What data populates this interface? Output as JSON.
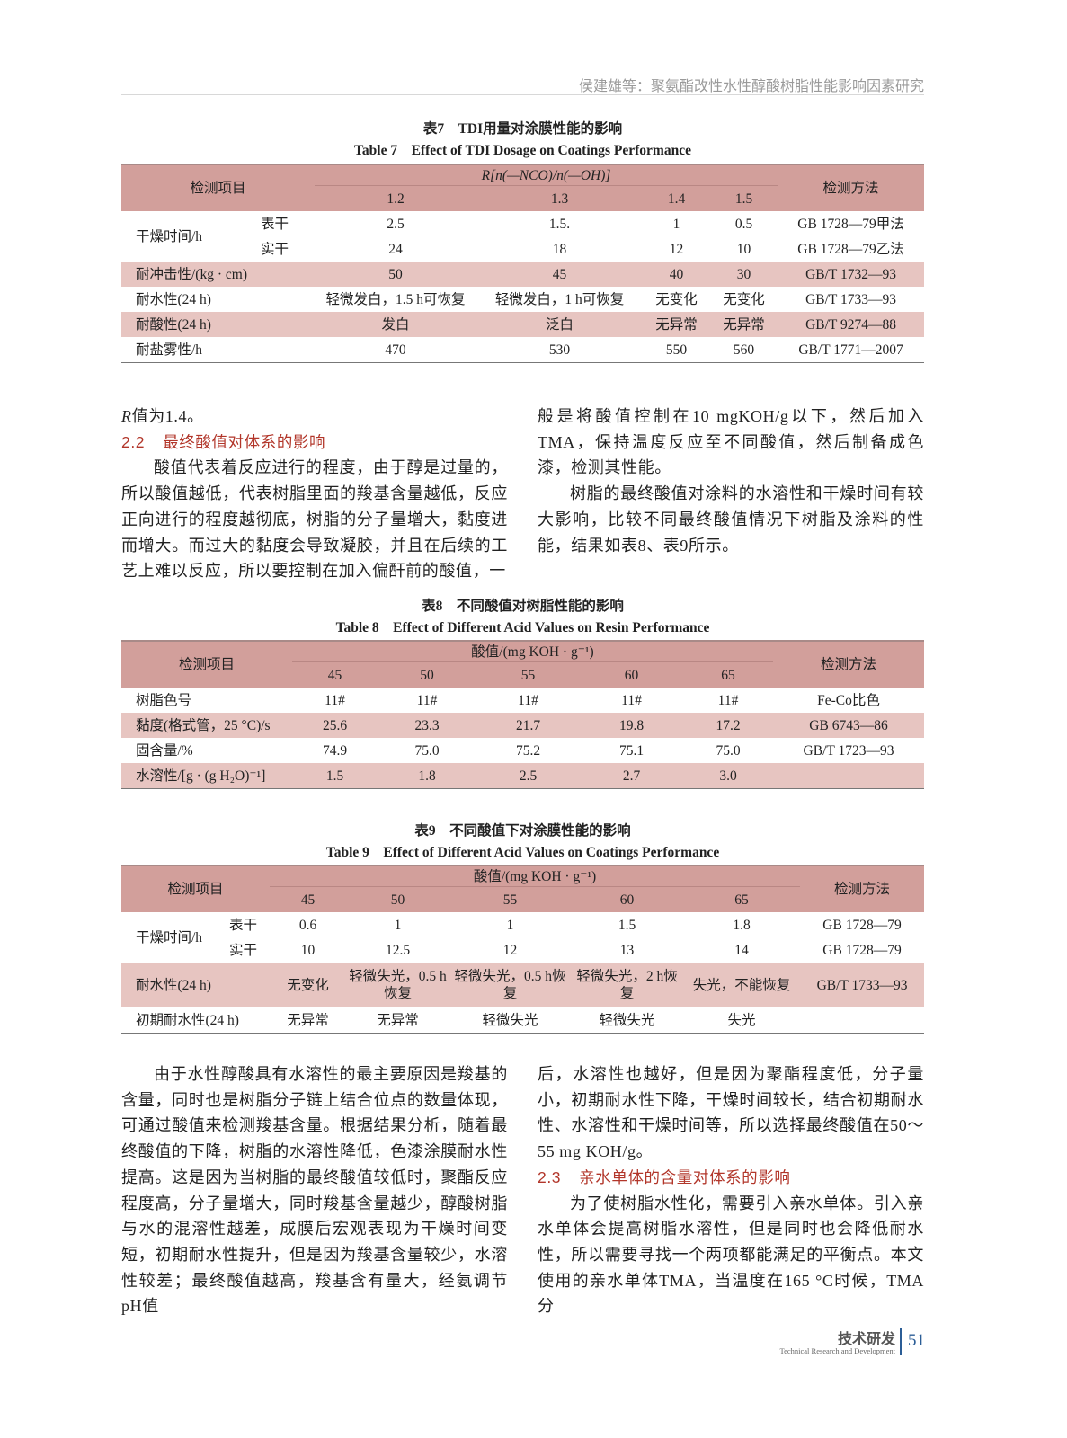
{
  "header": {
    "running_title": "侯建雄等：聚氨酯改性水性醇酸树脂性能影响因素研究"
  },
  "colors": {
    "table_header": "#d29f9b",
    "table_band": "#e7c5c1",
    "section_heading": "#b2362a",
    "footer_accent": "#2b5d96"
  },
  "table7": {
    "title_cn": "表7　TDI用量对涂膜性能的影响",
    "title_en": "Table 7　Effect of TDI Dosage on Coatings Performance",
    "col_item": "检测项目",
    "col_group": "R[n(—NCO)/n(—OH)]",
    "cols": [
      "1.2",
      "1.3",
      "1.4",
      "1.5"
    ],
    "col_method": "检测方法",
    "group_label": "干燥时间/h",
    "rows": [
      {
        "label": "表干",
        "values": [
          "2.5",
          "1.5.",
          "1",
          "0.5"
        ],
        "method": "GB 1728—79甲法"
      },
      {
        "label": "实干",
        "values": [
          "24",
          "18",
          "12",
          "10"
        ],
        "method": "GB 1728—79乙法"
      },
      {
        "label": "耐冲击性/(kg · cm)",
        "values": [
          "50",
          "45",
          "40",
          "30"
        ],
        "method": "GB/T 1732—93"
      },
      {
        "label": "耐水性(24 h)",
        "values": [
          "轻微发白，1.5 h可恢复",
          "轻微发白，1 h可恢复",
          "无变化",
          "无变化"
        ],
        "method": "GB/T 1733—93"
      },
      {
        "label": "耐酸性(24 h)",
        "values": [
          "发白",
          "泛白",
          "无异常",
          "无异常"
        ],
        "method": "GB/T 9274—88"
      },
      {
        "label": "耐盐雾性/h",
        "values": [
          "470",
          "530",
          "550",
          "560"
        ],
        "method": "GB/T 1771—2007"
      }
    ]
  },
  "left_top": {
    "line1": "R值为1.4。",
    "section_num": "2.2",
    "section_title": "最终酸值对体系的影响",
    "para": "酸值代表着反应进行的程度，由于醇是过量的，所以酸值越低，代表树脂里面的羧基含量越低，反应正向进行的程度越彻底，树脂的分子量增大，黏度进而增大。而过大的黏度会导致凝胶，并且在后续的工艺上难以反应，所以要控制在加入偏酐前的酸值，一"
  },
  "right_top": {
    "para1": "般是将酸值控制在10 mgKOH/g以下，然后加入TMA，保持温度反应至不同酸值，然后制备成色漆，检测其性能。",
    "para2": "树脂的最终酸值对涂料的水溶性和干燥时间有较大影响，比较不同最终酸值情况下树脂及涂料的性能，结果如表8、表9所示。"
  },
  "table8": {
    "title_cn": "表8　不同酸值对树脂性能的影响",
    "title_en": "Table 8　Effect of Different Acid Values on Resin Performance",
    "col_item": "检测项目",
    "col_group": "酸值/(mg KOH · g⁻¹)",
    "cols": [
      "45",
      "50",
      "55",
      "60",
      "65"
    ],
    "col_method": "检测方法",
    "rows": [
      {
        "label": "树脂色号",
        "values": [
          "11#",
          "11#",
          "11#",
          "11#",
          "11#"
        ],
        "method": "Fe-Co比色"
      },
      {
        "label": "黏度(格式管，25 °C)/s",
        "values": [
          "25.6",
          "23.3",
          "21.7",
          "19.8",
          "17.2"
        ],
        "method": "GB 6743—86"
      },
      {
        "label": "固含量/%",
        "values": [
          "74.9",
          "75.0",
          "75.2",
          "75.1",
          "75.0"
        ],
        "method": "GB/T 1723—93"
      },
      {
        "label": "水溶性/[g · (g H₂O)⁻¹]",
        "values": [
          "1.5",
          "1.8",
          "2.5",
          "2.7",
          "3.0"
        ],
        "method": ""
      }
    ]
  },
  "table9": {
    "title_cn": "表9　不同酸值下对涂膜性能的影响",
    "title_en": "Table 9　Effect of Different Acid Values on Coatings Performance",
    "col_item": "检测项目",
    "col_group": "酸值/(mg KOH · g⁻¹)",
    "cols": [
      "45",
      "50",
      "55",
      "60",
      "65"
    ],
    "col_method": "检测方法",
    "group_label": "干燥时间/h",
    "rows": [
      {
        "label": "表干",
        "values": [
          "0.6",
          "1",
          "1",
          "1.5",
          "1.8"
        ],
        "method": "GB 1728—79"
      },
      {
        "label": "实干",
        "values": [
          "10",
          "12.5",
          "12",
          "13",
          "14"
        ],
        "method": "GB 1728—79"
      },
      {
        "label": "耐水性(24 h)",
        "values": [
          "无变化",
          "轻微失光，0.5 h恢复",
          "轻微失光，0.5 h恢复",
          "轻微失光，2 h恢复",
          "失光，不能恢复"
        ],
        "method": "GB/T 1733—93"
      },
      {
        "label": "初期耐水性(24 h)",
        "values": [
          "无异常",
          "无异常",
          "轻微失光",
          "轻微失光",
          "失光"
        ],
        "method": ""
      }
    ]
  },
  "left_bottom": {
    "para": "由于水性醇酸具有水溶性的最主要原因是羧基的含量，同时也是树脂分子链上结合位点的数量体现，可通过酸值来检测羧基含量。根据结果分析，随着最终酸值的下降，树脂的水溶性降低，色漆涂膜耐水性提高。这是因为当树脂的最终酸值较低时，聚酯反应程度高，分子量增大，同时羧基含量越少，醇酸树脂与水的混溶性越差，成膜后宏观表现为干燥时间变短，初期耐水性提升，但是因为羧基含量较少，水溶性较差；最终酸值越高，羧基含有量大，经氨调节pH值"
  },
  "right_bottom": {
    "para1": "后，水溶性也越好，但是因为聚酯程度低，分子量小，初期耐水性下降，干燥时间较长，结合初期耐水性、水溶性和干燥时间等，所以选择最终酸值在50～55 mg KOH/g。",
    "section_num": "2.3",
    "section_title": "亲水单体的含量对体系的影响",
    "para2": "为了使树脂水性化，需要引入亲水单体。引入亲水单体会提高树脂水溶性，但是同时也会降低耐水性，所以需要寻找一个两项都能满足的平衡点。本文使用的亲水单体TMA，当温度在165 °C时候，TMA分"
  },
  "footer": {
    "section_cn": "技术研发",
    "section_en": "Technical Research and Development",
    "page_number": "51"
  }
}
